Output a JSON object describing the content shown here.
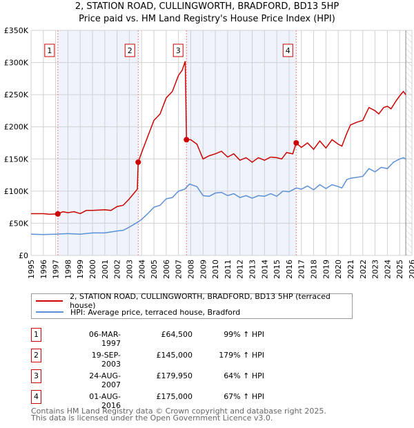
{
  "chart_data": {
    "type": "line",
    "title": "2, STATION ROAD, CULLINGWORTH, BRADFORD, BD13 5HP",
    "subtitle": "Price paid vs. HM Land Registry's House Price Index (HPI)",
    "xlim": [
      1995,
      2026
    ],
    "ylim": [
      0,
      350000
    ],
    "y_ticks": [
      {
        "v": 0,
        "label": "£0"
      },
      {
        "v": 50000,
        "label": "£50K"
      },
      {
        "v": 100000,
        "label": "£100K"
      },
      {
        "v": 150000,
        "label": "£150K"
      },
      {
        "v": 200000,
        "label": "£200K"
      },
      {
        "v": 250000,
        "label": "£250K"
      },
      {
        "v": 300000,
        "label": "£300K"
      },
      {
        "v": 350000,
        "label": "£350K"
      }
    ],
    "x_ticks": [
      "1995",
      "1996",
      "1997",
      "1998",
      "1999",
      "2000",
      "2001",
      "2002",
      "2003",
      "2004",
      "2005",
      "2006",
      "2007",
      "2008",
      "2009",
      "2010",
      "2011",
      "2012",
      "2013",
      "2014",
      "2015",
      "2016",
      "2017",
      "2018",
      "2019",
      "2020",
      "2021",
      "2022",
      "2023",
      "2024",
      "2025",
      "2026"
    ],
    "grid": true,
    "forecast_from": 2025.5,
    "series": [
      {
        "name": "2, STATION ROAD, CULLINGWORTH, BRADFORD, BD13 5HP (terraced house)",
        "color": "#cc0000",
        "x": [
          1995,
          1996,
          1996.5,
          1997.17,
          1997.6,
          1998,
          1998.5,
          1999,
          1999.5,
          2000,
          2001,
          2001.5,
          2002,
          2002.5,
          2003,
          2003.65,
          2003.72,
          2004,
          2004.5,
          2005,
          2005.5,
          2006,
          2006.5,
          2007,
          2007.3,
          2007.55,
          2007.65,
          2008,
          2008.5,
          2009,
          2009.5,
          2010,
          2010.5,
          2011,
          2011.5,
          2012,
          2012.5,
          2013,
          2013.5,
          2014,
          2014.5,
          2015,
          2015.4,
          2015.8,
          2016.3,
          2016.58,
          2017,
          2017.5,
          2018,
          2018.5,
          2019,
          2019.5,
          2020,
          2020.3,
          2020.7,
          2021,
          2021.5,
          2022,
          2022.5,
          2023,
          2023.3,
          2023.7,
          2024,
          2024.3,
          2024.7,
          2025,
          2025.3,
          2025.5
        ],
        "y": [
          65000,
          65000,
          64000,
          64500,
          68000,
          66500,
          68000,
          65000,
          70000,
          70000,
          71000,
          70000,
          76000,
          78000,
          88000,
          103000,
          145000,
          160000,
          185000,
          210000,
          220000,
          245000,
          255000,
          280000,
          288000,
          302000,
          180000,
          180000,
          173000,
          150000,
          155000,
          158000,
          162000,
          153000,
          158000,
          148000,
          152000,
          145000,
          152000,
          148000,
          153000,
          152000,
          150000,
          160000,
          158000,
          175000,
          168000,
          175000,
          165000,
          178000,
          167000,
          180000,
          173000,
          170000,
          190000,
          203000,
          207000,
          210000,
          230000,
          225000,
          220000,
          230000,
          232000,
          228000,
          240000,
          248000,
          255000,
          250000
        ]
      },
      {
        "name": "HPI: Average price, terraced house, Bradford",
        "color": "#5b8fd6",
        "x": [
          1995,
          1996,
          1997,
          1998,
          1999,
          2000,
          2001,
          2002,
          2002.5,
          2003,
          2003.7,
          2004,
          2004.5,
          2005,
          2005.5,
          2006,
          2006.5,
          2007,
          2007.5,
          2007.9,
          2008.5,
          2009,
          2009.5,
          2010,
          2010.5,
          2011,
          2011.5,
          2012,
          2012.5,
          2013,
          2013.5,
          2014,
          2014.5,
          2015,
          2015.5,
          2016,
          2016.6,
          2017,
          2017.5,
          2018,
          2018.5,
          2019,
          2019.5,
          2020,
          2020.3,
          2020.7,
          2021,
          2022,
          2022.5,
          2023,
          2023.5,
          2024,
          2024.5,
          2025,
          2025.3,
          2025.5
        ],
        "y": [
          33000,
          32500,
          33000,
          34000,
          33000,
          35000,
          35000,
          38000,
          39000,
          44000,
          52000,
          56000,
          65000,
          75000,
          78000,
          88000,
          90000,
          100000,
          103000,
          111000,
          107000,
          93000,
          92000,
          97000,
          98000,
          93000,
          96000,
          90000,
          93000,
          89000,
          93000,
          92000,
          96000,
          92000,
          100000,
          99000,
          105000,
          103000,
          108000,
          102000,
          110000,
          104000,
          110000,
          107000,
          105000,
          118000,
          120000,
          123000,
          135000,
          130000,
          137000,
          135000,
          145000,
          150000,
          152000,
          150000
        ]
      }
    ],
    "sales": [
      {
        "n": "1",
        "x": 1997.18,
        "price": 64500,
        "date": "06-MAR-1997",
        "price_label": "£64,500",
        "hpi": "99% ↑ HPI"
      },
      {
        "n": "2",
        "x": 2003.72,
        "price": 145000,
        "date": "19-SEP-2003",
        "price_label": "£145,000",
        "hpi": "179% ↑ HPI"
      },
      {
        "n": "3",
        "x": 2007.65,
        "price": 179950,
        "date": "24-AUG-2007",
        "price_label": "£179,950",
        "hpi": "64% ↑ HPI"
      },
      {
        "n": "4",
        "x": 2016.58,
        "price": 175000,
        "date": "01-AUG-2016",
        "price_label": "£175,000",
        "hpi": "67% ↑ HPI"
      }
    ]
  },
  "footer": {
    "line1": "Contains HM Land Registry data © Crown copyright and database right 2025.",
    "line2": "This data is licensed under the Open Government Licence v3.0."
  }
}
